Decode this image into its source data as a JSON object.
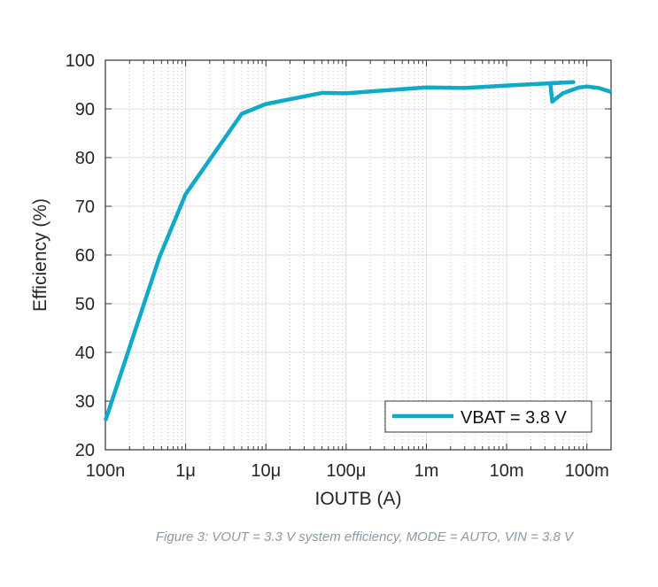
{
  "chart_data": {
    "type": "line",
    "title": "",
    "xlabel": "IOUTB (A)",
    "ylabel": "Efficiency (%)",
    "xscale": "log",
    "xlim": [
      1e-07,
      0.2
    ],
    "ylim": [
      20,
      100
    ],
    "xticks": [
      1e-07,
      1e-06,
      1e-05,
      0.0001,
      0.001,
      0.01,
      0.1
    ],
    "xtick_labels": [
      "100n",
      "1μ",
      "10μ",
      "100μ",
      "1m",
      "10m",
      "100m"
    ],
    "yticks": [
      20,
      30,
      40,
      50,
      60,
      70,
      80,
      90,
      100
    ],
    "ytick_labels": [
      "20",
      "30",
      "40",
      "50",
      "60",
      "70",
      "80",
      "90",
      "100"
    ],
    "grid": true,
    "legend_position": "bottom-right",
    "series": [
      {
        "name": "VBAT = 3.8 V",
        "color": "#11a9c8",
        "x": [
          1e-07,
          4.7e-07,
          1e-06,
          5e-06,
          1e-05,
          5e-05,
          0.0001,
          0.0003,
          0.001,
          0.003,
          0.01,
          0.03,
          0.068,
          0.035,
          0.037,
          0.05,
          0.08,
          0.1,
          0.14,
          0.2
        ],
        "y": [
          26,
          59.5,
          72.5,
          89,
          91,
          93.3,
          93.2,
          93.8,
          94.4,
          94.3,
          94.8,
          95.2,
          95.5,
          95.3,
          91.5,
          93.2,
          94.4,
          94.6,
          94.3,
          93.5
        ]
      }
    ]
  },
  "caption": "Figure 3: VOUT = 3.3 V system efficiency, MODE = AUTO, VIN = 3.8 V"
}
